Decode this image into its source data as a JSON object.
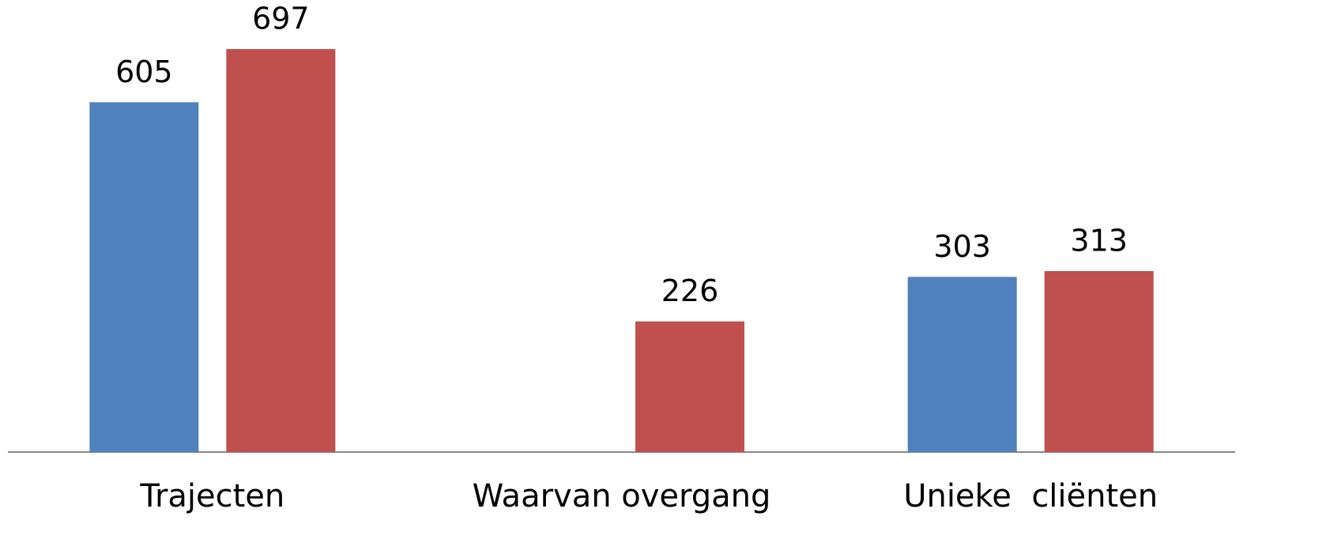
{
  "chart_data": {
    "type": "bar",
    "categories": [
      "Trajecten",
      "Waarvan overgang",
      "Unieke  cliënten"
    ],
    "series": [
      {
        "color": "#4f81bd",
        "values": [
          605,
          null,
          303
        ]
      },
      {
        "color": "#c0504d",
        "values": [
          697,
          226,
          313
        ]
      }
    ],
    "ylim": [
      0,
      760
    ]
  }
}
